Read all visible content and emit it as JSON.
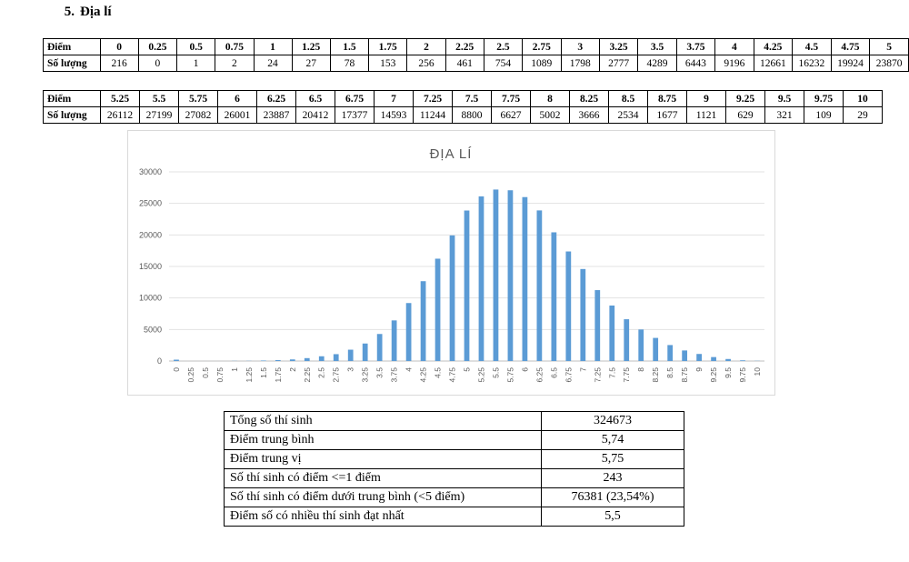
{
  "heading": {
    "number": "5.",
    "title": "Địa lí"
  },
  "score_table_1": {
    "header_label": "Điểm",
    "count_label": "Số lượng",
    "scores": [
      "0",
      "0.25",
      "0.5",
      "0.75",
      "1",
      "1.25",
      "1.5",
      "1.75",
      "2",
      "2.25",
      "2.5",
      "2.75",
      "3",
      "3.25",
      "3.5",
      "3.75",
      "4",
      "4.25",
      "4.5",
      "4.75",
      "5"
    ],
    "counts": [
      "216",
      "0",
      "1",
      "2",
      "24",
      "27",
      "78",
      "153",
      "256",
      "461",
      "754",
      "1089",
      "1798",
      "2777",
      "4289",
      "6443",
      "9196",
      "12661",
      "16232",
      "19924",
      "23870"
    ]
  },
  "score_table_2": {
    "header_label": "Điểm",
    "count_label": "Số lượng",
    "scores": [
      "5.25",
      "5.5",
      "5.75",
      "6",
      "6.25",
      "6.5",
      "6.75",
      "7",
      "7.25",
      "7.5",
      "7.75",
      "8",
      "8.25",
      "8.5",
      "8.75",
      "9",
      "9.25",
      "9.5",
      "9.75",
      "10"
    ],
    "counts": [
      "26112",
      "27199",
      "27082",
      "26001",
      "23887",
      "20412",
      "17377",
      "14593",
      "11244",
      "8800",
      "6627",
      "5002",
      "3666",
      "2534",
      "1677",
      "1121",
      "629",
      "321",
      "109",
      "29"
    ]
  },
  "chart_data": {
    "type": "bar",
    "title": "ĐỊA LÍ",
    "xlabel": "",
    "ylabel": "",
    "ylim": [
      0,
      30000
    ],
    "yticks": [
      "0",
      "5000",
      "10000",
      "15000",
      "20000",
      "25000",
      "30000"
    ],
    "grid": true,
    "bar_color": "#5b9bd5",
    "categories": [
      "0",
      "0.25",
      "0.5",
      "0.75",
      "1",
      "1.25",
      "1.5",
      "1.75",
      "2",
      "2.25",
      "2.5",
      "2.75",
      "3",
      "3.25",
      "3.5",
      "3.75",
      "4",
      "4.25",
      "4.5",
      "4.75",
      "5",
      "5.25",
      "5.5",
      "5.75",
      "6",
      "6.25",
      "6.5",
      "6.75",
      "7",
      "7.25",
      "7.5",
      "7.75",
      "8",
      "8.25",
      "8.5",
      "8.75",
      "9",
      "9.25",
      "9.5",
      "9.75",
      "10"
    ],
    "values": [
      216,
      0,
      1,
      2,
      24,
      27,
      78,
      153,
      256,
      461,
      754,
      1089,
      1798,
      2777,
      4289,
      6443,
      9196,
      12661,
      16232,
      19924,
      23870,
      26112,
      27199,
      27082,
      26001,
      23887,
      20412,
      17377,
      14593,
      11244,
      8800,
      6627,
      5002,
      3666,
      2534,
      1677,
      1121,
      629,
      321,
      109,
      29
    ]
  },
  "stats": [
    {
      "label": "Tổng số thí sinh",
      "value": "324673"
    },
    {
      "label": "Điểm trung bình",
      "value": "5,74"
    },
    {
      "label": "Điểm trung vị",
      "value": "5,75"
    },
    {
      "label": "Số thí sinh có điểm <=1 điểm",
      "value": "243"
    },
    {
      "label": "Số thí sinh có điểm dưới trung bình (<5 điểm)",
      "value": "76381 (23,54%)"
    },
    {
      "label": "Điểm số có nhiều thí sinh đạt nhất",
      "value": "5,5"
    }
  ]
}
